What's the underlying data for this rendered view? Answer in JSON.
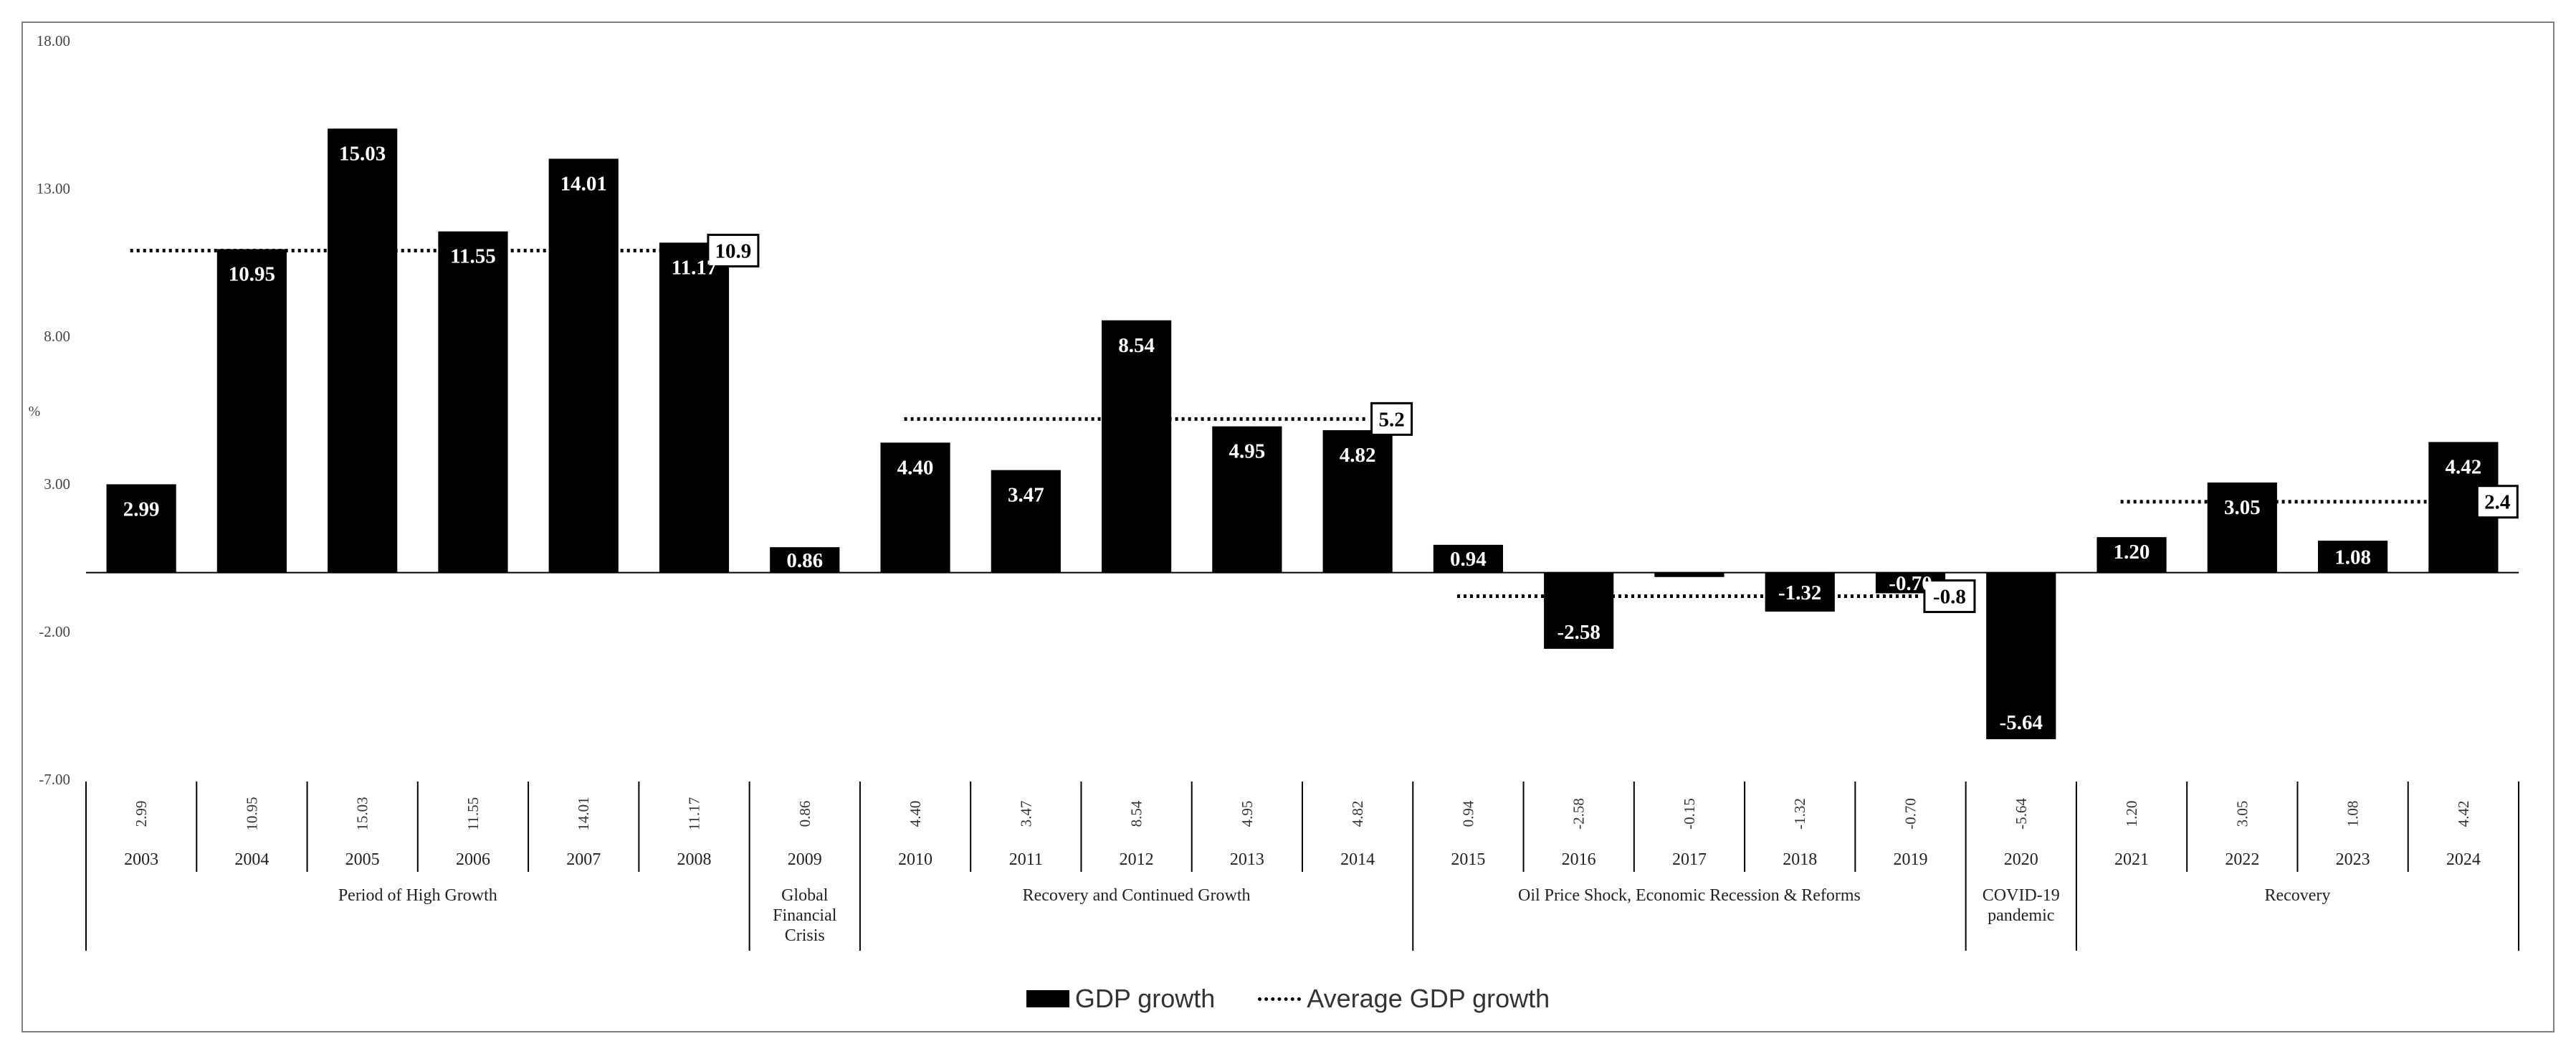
{
  "chart_data": {
    "type": "bar",
    "title": "",
    "xlabel": "",
    "ylabel": "%",
    "ylim": [
      -7,
      18
    ],
    "y_ticks": [
      18,
      13,
      8,
      3,
      -2,
      -7
    ],
    "y_tick_labels": [
      "18.00",
      "13.00",
      "8.00",
      "3.00",
      "-2.00",
      "-7.00"
    ],
    "categories": [
      "2003",
      "2004",
      "2005",
      "2006",
      "2007",
      "2008",
      "2009",
      "2010",
      "2011",
      "2012",
      "2013",
      "2014",
      "2015",
      "2016",
      "2017",
      "2018",
      "2019",
      "2020",
      "2021",
      "2022",
      "2023",
      "2024"
    ],
    "series": [
      {
        "name": "GDP growth",
        "values": [
          2.99,
          10.95,
          15.03,
          11.55,
          14.01,
          11.17,
          0.86,
          4.4,
          3.47,
          8.54,
          4.95,
          4.82,
          0.94,
          -2.58,
          -0.15,
          -1.32,
          -0.7,
          -5.64,
          1.2,
          3.05,
          1.08,
          4.42
        ],
        "bar_labels": [
          "2.99",
          "10.95",
          "15.03",
          "11.55",
          "14.01",
          "11.17",
          "0.86",
          "4.40",
          "3.47",
          "8.54",
          "4.95",
          "4.82",
          "0.94",
          "-2.58",
          "",
          "-1.32",
          "-0.70",
          "-5.64",
          "1.20",
          "3.05",
          "1.08",
          "4.42"
        ],
        "color": "#000000"
      }
    ],
    "table_values": [
      "2.99",
      "10.95",
      "15.03",
      "11.55",
      "14.01",
      "11.17",
      "0.86",
      "4.40",
      "3.47",
      "8.54",
      "4.95",
      "4.82",
      "0.94",
      "-2.58",
      "-0.15",
      "-1.32",
      "-0.70",
      "-5.64",
      "1.20",
      "3.05",
      "1.08",
      "4.42"
    ],
    "periods": [
      {
        "label": "Period of High Growth",
        "start": 0,
        "end": 5
      },
      {
        "label": "Global Financial Crisis",
        "label_lines": [
          "Global",
          "Financial",
          "Crisis"
        ],
        "start": 6,
        "end": 6
      },
      {
        "label": "Recovery and Continued Growth",
        "start": 7,
        "end": 11
      },
      {
        "label": "Oil Price Shock, Economic Recession & Reforms",
        "start": 12,
        "end": 16
      },
      {
        "label": "COVID-19 pandemic",
        "label_lines": [
          "COVID-19",
          "pandemic"
        ],
        "start": 17,
        "end": 17
      },
      {
        "label": "Recovery",
        "start": 18,
        "end": 21
      }
    ],
    "averages": [
      {
        "value": 10.9,
        "label": "10.9",
        "start": 0,
        "end": 5
      },
      {
        "value": 5.2,
        "label": "5.2",
        "start": 7,
        "end": 11
      },
      {
        "value": -0.8,
        "label": "-0.8",
        "start": 12,
        "end": 16
      },
      {
        "value": 2.4,
        "label": "2.4",
        "start": 18,
        "end": 21
      }
    ],
    "legend": [
      {
        "name": "GDP growth",
        "style": "bar"
      },
      {
        "name": "Average GDP growth",
        "style": "dotted-line"
      }
    ],
    "legend_position": "bottom"
  }
}
